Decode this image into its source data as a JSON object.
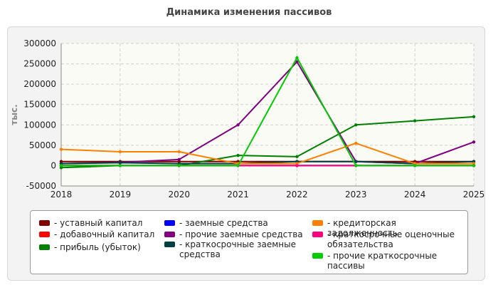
{
  "title": "Динамика изменения пассивов",
  "chart_data": {
    "type": "line",
    "title": "Динамика изменения пассивов",
    "xlabel": "",
    "ylabel": "тыс.",
    "x": [
      2018,
      2019,
      2020,
      2021,
      2022,
      2023,
      2024,
      2025
    ],
    "xlim": [
      2018,
      2025
    ],
    "ylim": [
      -50000,
      300000
    ],
    "yticks": [
      -50000,
      0,
      50000,
      100000,
      150000,
      200000,
      250000,
      300000
    ],
    "grid": true,
    "legend_position": "bottom",
    "series": [
      {
        "name": "- уставный капитал",
        "color": "#800000",
        "values": [
          10000,
          10000,
          10000,
          10000,
          10000,
          10000,
          10000,
          10000
        ]
      },
      {
        "name": "- добавочный капитал",
        "color": "#ff0000",
        "values": [
          0,
          0,
          0,
          0,
          0,
          0,
          0,
          0
        ]
      },
      {
        "name": "- прибыль (убыток)",
        "color": "#008000",
        "values": [
          -5000,
          0,
          0,
          25000,
          22000,
          100000,
          110000,
          120000
        ]
      },
      {
        "name": "- заемные средства",
        "color": "#0000ff",
        "values": [
          0,
          0,
          0,
          0,
          0,
          0,
          0,
          0
        ]
      },
      {
        "name": "- прочие заемные средства",
        "color": "#800080",
        "values": [
          5000,
          8000,
          15000,
          100000,
          255000,
          10000,
          5000,
          58000
        ]
      },
      {
        "name": "- краткосрочные заемные средства",
        "color": "#004040",
        "values": [
          5000,
          7000,
          5000,
          5000,
          10000,
          10000,
          5000,
          10000
        ]
      },
      {
        "name": "- кредиторская задолженность",
        "color": "#ff8000",
        "values": [
          40000,
          34000,
          34000,
          5000,
          5000,
          55000,
          5000,
          5000
        ]
      },
      {
        "name": "- краткосрочные оценочные обязательства",
        "color": "#ff0080",
        "values": [
          0,
          0,
          0,
          0,
          0,
          0,
          0,
          0
        ]
      },
      {
        "name": "- прочие краткосрочные пассивы",
        "color": "#00cc00",
        "values": [
          0,
          0,
          0,
          0,
          265000,
          0,
          0,
          0
        ]
      }
    ]
  },
  "legend": {
    "items": [
      {
        "label": "- уставный капитал",
        "color": "#800000"
      },
      {
        "label": "- добавочный капитал",
        "color": "#ff0000"
      },
      {
        "label": "- прибыль (убыток)",
        "color": "#008000"
      },
      {
        "label": "- заемные средства",
        "color": "#0000ff"
      },
      {
        "label": "- прочие заемные средства",
        "color": "#800080"
      },
      {
        "label": "- краткосрочные заемные средства",
        "color": "#004040"
      },
      {
        "label": "- кредиторская задолженность",
        "color": "#ff8000"
      },
      {
        "label": "- краткосрочные оценочные обязательства",
        "color": "#ff0080"
      },
      {
        "label": "- прочие краткосрочные пассивы",
        "color": "#00cc00"
      }
    ]
  }
}
